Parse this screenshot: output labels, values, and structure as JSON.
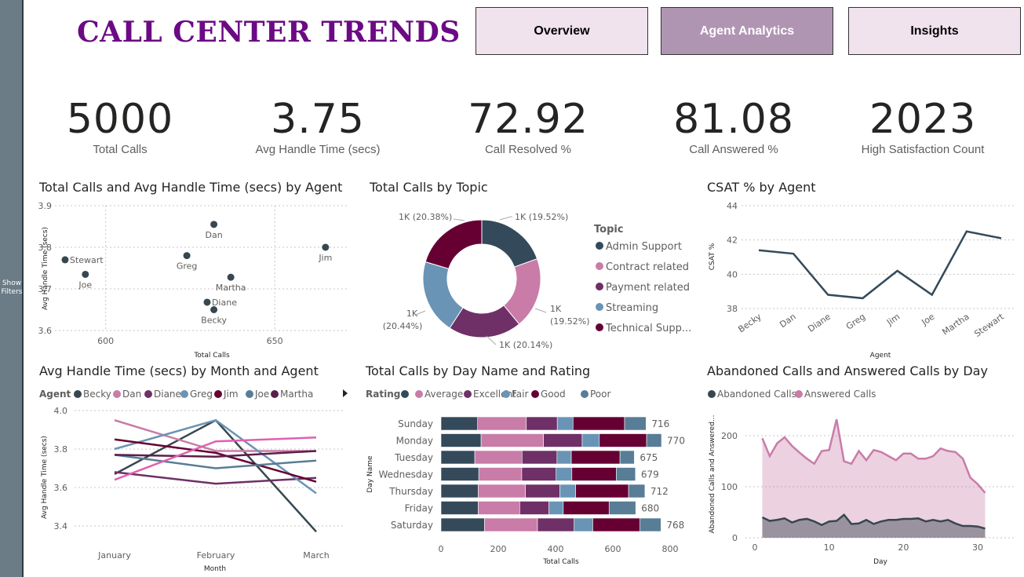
{
  "filters": {
    "label_line1": "Show",
    "label_line2": "Filters"
  },
  "header": {
    "title": "CALL CENTER TRENDS"
  },
  "nav": {
    "overview": "Overview",
    "agent_analytics": "Agent Analytics",
    "insights": "Insights"
  },
  "kpis": [
    {
      "value": "5000",
      "label": "Total Calls"
    },
    {
      "value": "3.75",
      "label": "Avg Handle Time (secs)"
    },
    {
      "value": "72.92",
      "label": "Call Resolved %"
    },
    {
      "value": "81.08",
      "label": "Call Answered %"
    },
    {
      "value": "2023",
      "label": "High Satisfaction Count"
    }
  ],
  "colors": {
    "becky": "#37474f",
    "dan": "#c97ca8",
    "diane": "#6e3067",
    "greg": "#6a94b5",
    "jim": "#660033",
    "joe": "#587d96",
    "martha": "#5b1f4b",
    "stewart": "#e060b0",
    "point": "#37474f",
    "grid": "#c8c6c4"
  },
  "chart_data": [
    {
      "type": "scatter",
      "title": "Total Calls and Avg Handle Time (secs) by Agent",
      "xlabel": "Total Calls",
      "ylabel": "Avg Handle Time (secs)",
      "xlim": [
        585,
        672
      ],
      "ylim": [
        3.58,
        3.9
      ],
      "xticks": [
        600,
        650
      ],
      "yticks": [
        3.6,
        3.7,
        3.8,
        3.9
      ],
      "points": [
        {
          "name": "Stewart",
          "x": 588,
          "y": 3.77,
          "label_pos": "right"
        },
        {
          "name": "Joe",
          "x": 594,
          "y": 3.735,
          "label_pos": "below"
        },
        {
          "name": "Greg",
          "x": 624,
          "y": 3.78,
          "label_pos": "below"
        },
        {
          "name": "Dan",
          "x": 632,
          "y": 3.855,
          "label_pos": "below"
        },
        {
          "name": "Jim",
          "x": 665,
          "y": 3.8,
          "label_pos": "below"
        },
        {
          "name": "Martha",
          "x": 637,
          "y": 3.728,
          "label_pos": "below"
        },
        {
          "name": "Diane",
          "x": 630,
          "y": 3.668,
          "label_pos": "right"
        },
        {
          "name": "Becky",
          "x": 632,
          "y": 3.65,
          "label_pos": "below"
        }
      ]
    },
    {
      "type": "pie",
      "title": "Total Calls by Topic",
      "legend_title": "Topic",
      "slices": [
        {
          "name": "Admin Support",
          "value": 19.52,
          "label": "1K (19.52%)",
          "color": "#344a5a"
        },
        {
          "name": "Contract related",
          "value": 19.52,
          "label": "1K (19.52%)",
          "color": "#c97ca8"
        },
        {
          "name": "Payment related",
          "value": 20.14,
          "label": "1K (20.14%)",
          "color": "#6e3067"
        },
        {
          "name": "Streaming",
          "value": 20.44,
          "label": "1K (20.44%)",
          "color": "#6a94b5"
        },
        {
          "name": "Technical Supp...",
          "value": 20.38,
          "label": "1K (20.38%)",
          "color": "#660033"
        }
      ]
    },
    {
      "type": "line",
      "title": "CSAT % by Agent",
      "xlabel": "Agent",
      "ylabel": "CSAT %",
      "categories": [
        "Becky",
        "Dan",
        "Diane",
        "Greg",
        "Jim",
        "Joe",
        "Martha",
        "Stewart"
      ],
      "values": [
        41.4,
        41.2,
        38.8,
        38.6,
        40.2,
        38.8,
        42.5,
        42.1
      ],
      "ylim": [
        37.4,
        44
      ],
      "yticks": [
        38,
        40,
        42,
        44
      ]
    },
    {
      "type": "line",
      "title": "Avg Handle Time (secs) by Month and Agent",
      "xlabel": "Month",
      "ylabel": "Avg Handle Time (secs)",
      "legend_title": "Agent",
      "categories": [
        "January",
        "February",
        "March"
      ],
      "ylim": [
        3.35,
        4.0
      ],
      "yticks": [
        3.4,
        3.6,
        3.8,
        4.0
      ],
      "series": [
        {
          "name": "Becky",
          "values": [
            3.67,
            3.95,
            3.37
          ],
          "color": "#37474f"
        },
        {
          "name": "Dan",
          "values": [
            3.95,
            3.79,
            3.79
          ],
          "color": "#c97ca8"
        },
        {
          "name": "Diane",
          "values": [
            3.68,
            3.62,
            3.65
          ],
          "color": "#6e3067"
        },
        {
          "name": "Greg",
          "values": [
            3.8,
            3.95,
            3.57
          ],
          "color": "#6a94b5"
        },
        {
          "name": "Jim",
          "values": [
            3.85,
            3.78,
            3.63
          ],
          "color": "#660033"
        },
        {
          "name": "Joe",
          "values": [
            3.77,
            3.7,
            3.74
          ],
          "color": "#587d96"
        },
        {
          "name": "Martha",
          "values": [
            3.77,
            3.76,
            3.79
          ],
          "color": "#5b1f4b"
        },
        {
          "name": "",
          "values": [
            3.64,
            3.84,
            3.86
          ],
          "color": "#e060b0"
        }
      ]
    },
    {
      "type": "bar",
      "orientation": "horizontal",
      "stacked": true,
      "title": "Total Calls by Day Name and Rating",
      "xlabel": "Total Calls",
      "ylabel": "Day Name",
      "legend_title": "Rating",
      "categories": [
        "Sunday",
        "Monday",
        "Tuesday",
        "Wednesday",
        "Thursday",
        "Friday",
        "Saturday"
      ],
      "totals": [
        716,
        770,
        675,
        679,
        712,
        680,
        768
      ],
      "xlim": [
        0,
        800
      ],
      "xticks": [
        0,
        200,
        400,
        600,
        800
      ],
      "series": [
        {
          "name": "",
          "values": [
            128,
            140,
            118,
            132,
            130,
            130,
            152
          ],
          "color": "#344a5a"
        },
        {
          "name": "Average",
          "values": [
            170,
            218,
            165,
            150,
            165,
            145,
            185
          ],
          "color": "#c97ca8"
        },
        {
          "name": "Excellent",
          "values": [
            108,
            135,
            122,
            120,
            120,
            102,
            128
          ],
          "color": "#6e3067"
        },
        {
          "name": "Fair",
          "values": [
            55,
            60,
            50,
            55,
            55,
            50,
            65
          ],
          "color": "#6a94b5"
        },
        {
          "name": "Good",
          "values": [
            180,
            165,
            170,
            155,
            185,
            160,
            165
          ],
          "color": "#660033"
        },
        {
          "name": "Poor",
          "values": [
            75,
            52,
            50,
            67,
            57,
            93,
            73
          ],
          "color": "#587d96"
        }
      ]
    },
    {
      "type": "area",
      "title": "Abandoned Calls and Answered Calls by Day",
      "xlabel": "Day",
      "ylabel": "Abandoned Calls and Answered...",
      "xlim": [
        -1,
        34
      ],
      "ylim": [
        0,
        250
      ],
      "xticks": [
        0,
        10,
        20,
        30
      ],
      "yticks": [
        0,
        100,
        200
      ],
      "x": [
        1,
        2,
        3,
        4,
        5,
        6,
        7,
        8,
        9,
        10,
        11,
        12,
        13,
        14,
        15,
        16,
        17,
        18,
        19,
        20,
        21,
        22,
        23,
        24,
        25,
        26,
        27,
        28,
        29,
        30,
        31
      ],
      "series": [
        {
          "name": "Abandoned Calls",
          "color": "#37474f",
          "values": [
            40,
            33,
            35,
            38,
            30,
            35,
            37,
            32,
            25,
            32,
            33,
            45,
            27,
            28,
            35,
            27,
            32,
            35,
            35,
            37,
            37,
            38,
            32,
            35,
            32,
            35,
            28,
            23,
            23,
            22,
            18
          ]
        },
        {
          "name": "Answered Calls",
          "color": "#c97ca8",
          "values": [
            195,
            160,
            185,
            197,
            180,
            167,
            155,
            145,
            170,
            172,
            232,
            150,
            145,
            170,
            152,
            172,
            168,
            160,
            152,
            165,
            165,
            155,
            155,
            160,
            175,
            170,
            168,
            155,
            118,
            105,
            88
          ]
        }
      ]
    }
  ]
}
